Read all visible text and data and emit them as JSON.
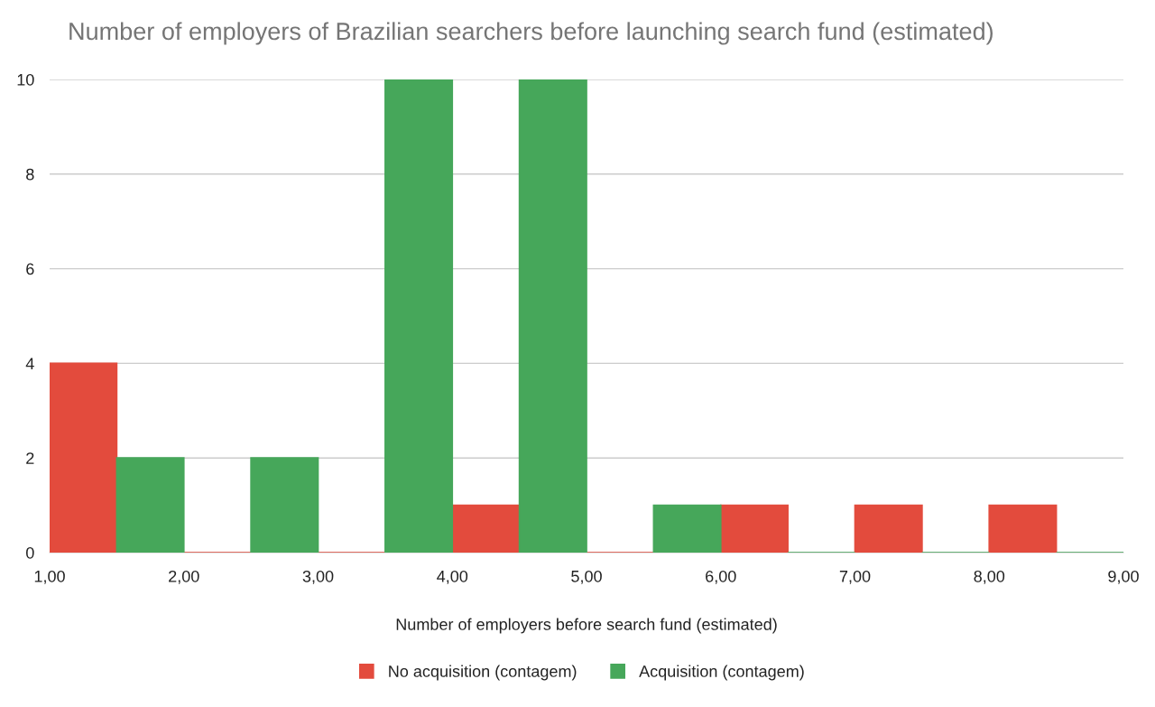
{
  "chart_data": {
    "type": "histogram",
    "title": "Number of employers of Brazilian searchers before launching search fund (estimated)",
    "xlabel": "Number of employers before search fund (estimated)",
    "bins": [
      1,
      2,
      3,
      4,
      5,
      6,
      7,
      8,
      9
    ],
    "series": [
      {
        "name": "No acquisition (contagem)",
        "color": "#e34b3d",
        "values": [
          4,
          0,
          0,
          1,
          0,
          1,
          1,
          1
        ]
      },
      {
        "name": "Acquisition (contagem)",
        "color": "#46a75a",
        "values": [
          2,
          2,
          10,
          10,
          1,
          0,
          0,
          0
        ]
      }
    ],
    "xlim": [
      1,
      9
    ],
    "xticks": [
      {
        "value": 1,
        "label": "1,00"
      },
      {
        "value": 2,
        "label": "2,00"
      },
      {
        "value": 3,
        "label": "3,00"
      },
      {
        "value": 4,
        "label": "4,00"
      },
      {
        "value": 5,
        "label": "5,00"
      },
      {
        "value": 6,
        "label": "6,00"
      },
      {
        "value": 7,
        "label": "7,00"
      },
      {
        "value": 8,
        "label": "8,00"
      },
      {
        "value": 9,
        "label": "9,00"
      }
    ],
    "ylim": [
      0,
      10
    ],
    "yticks": [
      0,
      2,
      4,
      6,
      8,
      10
    ],
    "grid": "y",
    "legend": "bottom"
  }
}
